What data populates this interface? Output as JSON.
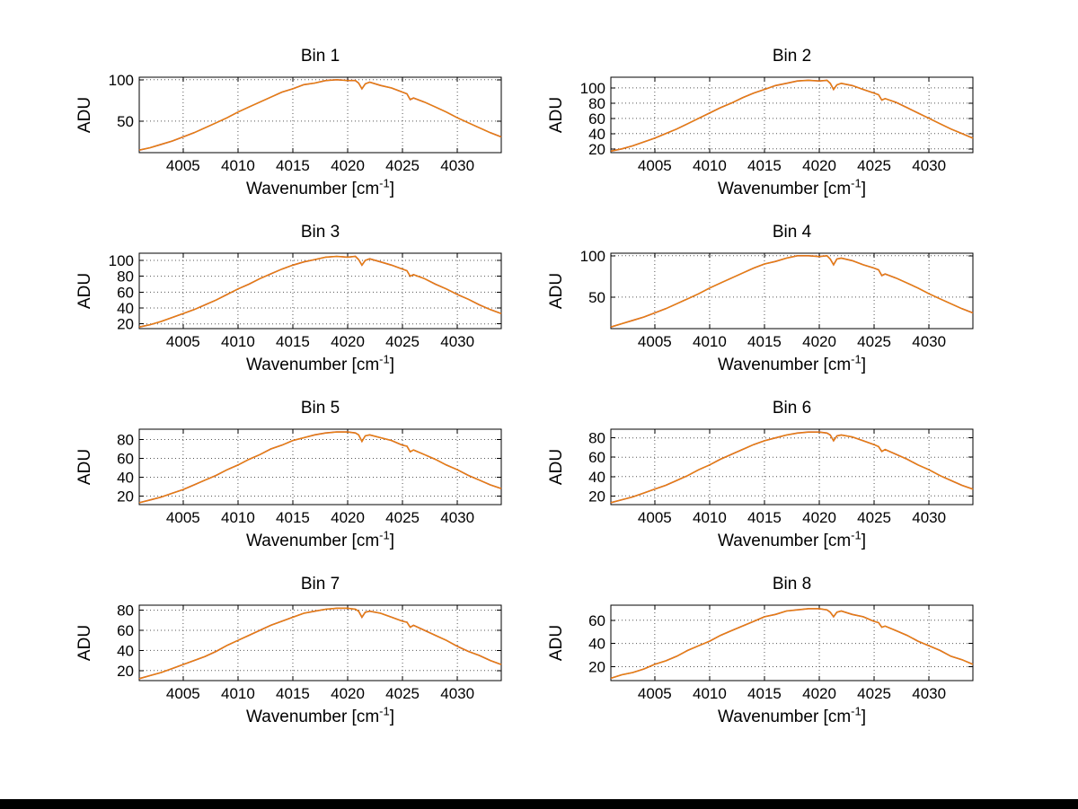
{
  "page": {
    "background": "#ffffff",
    "bottom_bar_color": "#000000"
  },
  "labels": {
    "ylabel": "ADU",
    "xlabel_pre": "Wavenumber [cm",
    "xlabel_sup": "-1",
    "xlabel_post": "]"
  },
  "chart_data": {
    "type": "line",
    "layout": "4 rows x 2 cols",
    "grid": "on",
    "xlabel": "Wavenumber [cm^-1]",
    "ylabel": "ADU",
    "xlim": [
      4001,
      4034
    ],
    "xticks": [
      4005,
      4010,
      4015,
      4020,
      4025,
      4030
    ],
    "line_color": "#e8860d",
    "line_under_color": "#c0392b",
    "x": [
      4001,
      4002,
      4003,
      4004,
      4005,
      4006,
      4007,
      4008,
      4009,
      4010,
      4011,
      4012,
      4013,
      4014,
      4015,
      4016,
      4017,
      4018,
      4019,
      4020,
      4020.7,
      4021,
      4021.3,
      4021.6,
      4022,
      4023,
      4024,
      4025,
      4025.4,
      4025.7,
      4026,
      4027,
      4028,
      4029,
      4030,
      4031,
      4032,
      4033,
      4034
    ],
    "subplots": [
      {
        "title": "Bin 1",
        "ylim": [
          12,
          103
        ],
        "yticks": [
          50,
          100
        ],
        "values": [
          15,
          18,
          22,
          26,
          31,
          36,
          42,
          48,
          54,
          61,
          67,
          73,
          79,
          85,
          89,
          94,
          96,
          99,
          100,
          99,
          99,
          96,
          89,
          95,
          97,
          93,
          90,
          85,
          83,
          76,
          78,
          73,
          67,
          61,
          54,
          48,
          42,
          36,
          31
        ]
      },
      {
        "title": "Bin 2",
        "ylim": [
          15,
          114
        ],
        "yticks": [
          20,
          40,
          60,
          80,
          100
        ],
        "values": [
          17,
          20,
          24,
          29,
          34,
          40,
          46,
          53,
          60,
          67,
          74,
          80,
          87,
          93,
          98,
          103,
          106,
          109,
          110,
          109,
          110,
          106,
          98,
          104,
          106,
          103,
          98,
          93,
          91,
          84,
          86,
          81,
          74,
          67,
          60,
          53,
          46,
          40,
          34
        ]
      },
      {
        "title": "Bin 3",
        "ylim": [
          14,
          109
        ],
        "yticks": [
          20,
          40,
          60,
          80,
          100
        ],
        "values": [
          16,
          19,
          23,
          28,
          33,
          38,
          44,
          50,
          57,
          64,
          70,
          77,
          83,
          89,
          94,
          98,
          101,
          104,
          105,
          104,
          105,
          101,
          94,
          100,
          102,
          98,
          94,
          89,
          87,
          80,
          82,
          77,
          70,
          64,
          57,
          51,
          44,
          38,
          33
        ]
      },
      {
        "title": "Bin 4",
        "ylim": [
          12,
          103
        ],
        "yticks": [
          50,
          100
        ],
        "values": [
          14,
          18,
          22,
          26,
          31,
          36,
          42,
          48,
          54,
          61,
          67,
          73,
          79,
          85,
          90,
          93,
          97,
          100,
          100,
          99,
          100,
          96,
          89,
          96,
          97,
          94,
          89,
          85,
          83,
          76,
          78,
          73,
          67,
          61,
          54,
          48,
          42,
          36,
          31
        ]
      },
      {
        "title": "Bin 5",
        "ylim": [
          11,
          91
        ],
        "yticks": [
          20,
          40,
          60,
          80
        ],
        "values": [
          13,
          16,
          19,
          23,
          27,
          32,
          37,
          42,
          48,
          53,
          59,
          64,
          70,
          74,
          79,
          82,
          85,
          87,
          88,
          88,
          87,
          85,
          78,
          84,
          85,
          82,
          79,
          74,
          73,
          67,
          69,
          64,
          59,
          53,
          48,
          42,
          37,
          32,
          28
        ]
      },
      {
        "title": "Bin 6",
        "ylim": [
          11,
          89
        ],
        "yticks": [
          20,
          40,
          60,
          80
        ],
        "values": [
          13,
          16,
          19,
          23,
          27,
          31,
          36,
          41,
          47,
          52,
          58,
          63,
          68,
          73,
          77,
          80,
          83,
          85,
          86,
          86,
          85,
          83,
          77,
          82,
          83,
          81,
          77,
          73,
          71,
          66,
          68,
          63,
          58,
          52,
          47,
          41,
          36,
          31,
          27
        ]
      },
      {
        "title": "Bin 7",
        "ylim": [
          10,
          85
        ],
        "yticks": [
          20,
          40,
          60,
          80
        ],
        "values": [
          12,
          15,
          18,
          22,
          26,
          30,
          34,
          39,
          45,
          50,
          55,
          60,
          65,
          69,
          73,
          77,
          79,
          81,
          82,
          82,
          81,
          79,
          73,
          78,
          79,
          77,
          73,
          69,
          68,
          63,
          65,
          60,
          55,
          50,
          44,
          39,
          35,
          30,
          26
        ]
      },
      {
        "title": "Bin 8",
        "ylim": [
          8,
          73
        ],
        "yticks": [
          20,
          40,
          60
        ],
        "values": [
          10,
          13,
          15,
          18,
          22,
          25,
          29,
          34,
          38,
          42,
          47,
          51,
          55,
          59,
          63,
          65,
          68,
          69,
          70,
          70,
          69,
          67,
          63,
          67,
          68,
          65,
          63,
          59,
          58,
          54,
          55,
          51,
          47,
          42,
          38,
          34,
          29,
          26,
          22
        ]
      }
    ]
  }
}
